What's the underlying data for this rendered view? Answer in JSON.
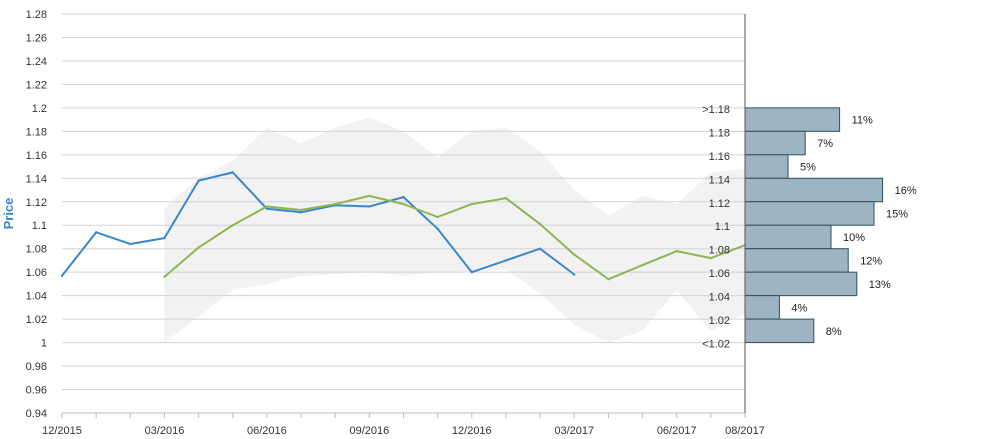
{
  "chart_data": {
    "type": "line",
    "ylabel": "Price",
    "ylim": [
      0.94,
      1.28
    ],
    "yticks": [
      0.94,
      0.96,
      0.98,
      1,
      1.02,
      1.04,
      1.06,
      1.08,
      1.1,
      1.12,
      1.14,
      1.16,
      1.18,
      1.2,
      1.22,
      1.24,
      1.26,
      1.28
    ],
    "ytick_labels": [
      "0.94",
      "0.96",
      "0.98",
      "1",
      "1.02",
      "1.04",
      "1.06",
      "1.08",
      "1.1",
      "1.12",
      "1.14",
      "1.16",
      "1.18",
      "1.2",
      "1.22",
      "1.24",
      "1.26",
      "1.28"
    ],
    "x_labels": [
      "12/2015",
      "03/2016",
      "06/2016",
      "09/2016",
      "12/2016",
      "03/2017",
      "06/2017",
      "08/2017"
    ],
    "x_label_months": [
      0,
      3,
      6,
      9,
      12,
      15,
      18,
      20
    ],
    "grid": true,
    "colors": {
      "actual": "#3a87cc",
      "forecast": "#8db652",
      "band": "#f2f2f2",
      "bars": "#9db4c3",
      "bar_border": "#2f4f5f",
      "ylabel": "#3a87cc"
    },
    "series": [
      {
        "key": "actual",
        "x_months": [
          0,
          1,
          2,
          3,
          4,
          5,
          6,
          7,
          8,
          9,
          10,
          11,
          12,
          13,
          14,
          15
        ],
        "values": [
          1.057,
          1.094,
          1.084,
          1.089,
          1.138,
          1.145,
          1.114,
          1.111,
          1.117,
          1.116,
          1.124,
          1.097,
          1.06,
          1.07,
          1.08,
          1.058
        ]
      },
      {
        "key": "forecast",
        "x_months": [
          3,
          4,
          5,
          6,
          7,
          8,
          9,
          10,
          11,
          12,
          13,
          14,
          15,
          16,
          17,
          18,
          19,
          20
        ],
        "values": [
          1.056,
          1.081,
          1.1,
          1.116,
          1.113,
          1.118,
          1.125,
          1.118,
          1.107,
          1.118,
          1.123,
          1.101,
          1.075,
          1.054,
          1.066,
          1.078,
          1.072,
          1.083
        ]
      }
    ],
    "band": {
      "x_months": [
        3,
        4,
        5,
        6,
        7,
        8,
        9,
        10,
        11,
        12,
        13,
        14,
        15,
        16,
        17,
        18,
        19,
        20
      ],
      "upper": [
        1.115,
        1.14,
        1.155,
        1.183,
        1.17,
        1.183,
        1.192,
        1.18,
        1.158,
        1.18,
        1.183,
        1.163,
        1.13,
        1.108,
        1.125,
        1.118,
        1.145,
        1.148
      ],
      "lower": [
        1.0,
        1.022,
        1.045,
        1.05,
        1.057,
        1.058,
        1.06,
        1.057,
        1.06,
        1.061,
        1.062,
        1.042,
        1.015,
        1.0,
        1.01,
        1.045,
        1.01,
        1.025
      ]
    },
    "distribution": {
      "bins": [
        {
          "label": ">1.18",
          "pct": 11,
          "pct_label": "11%"
        },
        {
          "label": "1.18",
          "pct": 7,
          "pct_label": "7%"
        },
        {
          "label": "1.16",
          "pct": 5,
          "pct_label": "5%"
        },
        {
          "label": "1.14",
          "pct": 16,
          "pct_label": "16%"
        },
        {
          "label": "1.12",
          "pct": 15,
          "pct_label": "15%"
        },
        {
          "label": "1.1",
          "pct": 10,
          "pct_label": "10%"
        },
        {
          "label": "1.08",
          "pct": 12,
          "pct_label": "12%"
        },
        {
          "label": "1.06",
          "pct": 13,
          "pct_label": "13%"
        },
        {
          "label": "1.04",
          "pct": 4,
          "pct_label": "4%"
        },
        {
          "label": "1.02",
          "pct": 8,
          "pct_label": "8%"
        },
        {
          "label": "<1.02",
          "pct": null,
          "pct_label": ""
        }
      ],
      "bin_bounds": [
        [
          1.18,
          1.2
        ],
        [
          1.16,
          1.18
        ],
        [
          1.14,
          1.16
        ],
        [
          1.12,
          1.14
        ],
        [
          1.1,
          1.12
        ],
        [
          1.08,
          1.1
        ],
        [
          1.06,
          1.08
        ],
        [
          1.04,
          1.06
        ],
        [
          1.02,
          1.04
        ],
        [
          1.0,
          1.02
        ]
      ]
    }
  }
}
